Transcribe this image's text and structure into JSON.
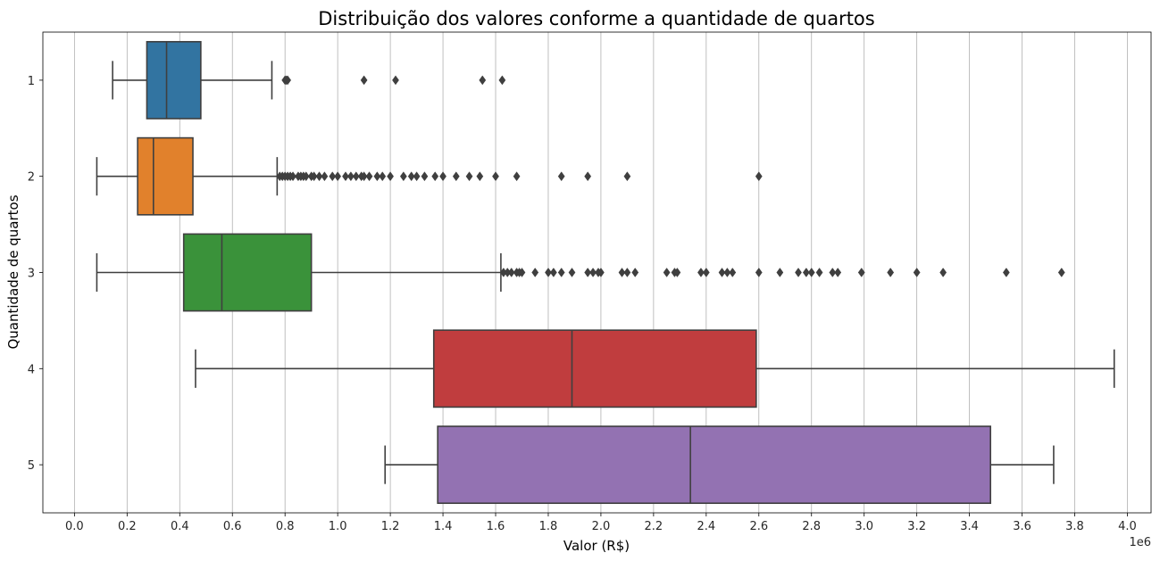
{
  "chart_data": {
    "type": "boxplot",
    "title": "Distribuição dos valores conforme a quantidade de quartos",
    "xlabel": "Valor (R$)",
    "ylabel": "Quantidade de quartos",
    "x_offset_label": "1e6",
    "x_scale": 1000000,
    "xlim": [
      -0.12,
      4.09
    ],
    "x_ticks": [
      0.0,
      0.2,
      0.4,
      0.6,
      0.8,
      1.0,
      1.2,
      1.4,
      1.6,
      1.8,
      2.0,
      2.2,
      2.4,
      2.6,
      2.8,
      3.0,
      3.2,
      3.4,
      3.6,
      3.8,
      4.0
    ],
    "x_tick_labels": [
      "0.0",
      "0.2",
      "0.4",
      "0.6",
      "0.8",
      "1.0",
      "1.2",
      "1.4",
      "1.6",
      "1.8",
      "2.0",
      "2.2",
      "2.4",
      "2.6",
      "2.8",
      "3.0",
      "3.2",
      "3.4",
      "3.6",
      "3.8",
      "4.0"
    ],
    "grid": "vertical",
    "categories": [
      "1",
      "2",
      "3",
      "4",
      "5"
    ],
    "series": [
      {
        "category": "1",
        "color": "#3274a1",
        "whisker_low": 0.145,
        "q1": 0.275,
        "median": 0.35,
        "q3": 0.48,
        "whisker_high": 0.75,
        "outliers": [
          0.8,
          0.805,
          0.81,
          1.1,
          1.22,
          1.55,
          1.625
        ]
      },
      {
        "category": "2",
        "color": "#e1812c",
        "whisker_low": 0.085,
        "q1": 0.24,
        "median": 0.3,
        "q3": 0.45,
        "whisker_high": 0.77,
        "outliers": [
          0.78,
          0.79,
          0.8,
          0.81,
          0.82,
          0.83,
          0.85,
          0.86,
          0.87,
          0.88,
          0.9,
          0.91,
          0.93,
          0.95,
          0.98,
          1.0,
          1.03,
          1.05,
          1.07,
          1.09,
          1.1,
          1.12,
          1.15,
          1.17,
          1.2,
          1.25,
          1.28,
          1.3,
          1.33,
          1.37,
          1.4,
          1.45,
          1.5,
          1.54,
          1.6,
          1.68,
          1.85,
          1.95,
          2.1,
          2.6
        ]
      },
      {
        "category": "3",
        "color": "#3a923a",
        "whisker_low": 0.085,
        "q1": 0.415,
        "median": 0.56,
        "q3": 0.9,
        "whisker_high": 1.62,
        "outliers": [
          1.63,
          1.645,
          1.66,
          1.68,
          1.69,
          1.7,
          1.75,
          1.8,
          1.82,
          1.85,
          1.89,
          1.95,
          1.97,
          1.99,
          2.0,
          2.08,
          2.1,
          2.13,
          2.25,
          2.28,
          2.29,
          2.38,
          2.4,
          2.46,
          2.48,
          2.5,
          2.6,
          2.68,
          2.75,
          2.78,
          2.8,
          2.83,
          2.88,
          2.9,
          2.99,
          3.1,
          3.2,
          3.3,
          3.54,
          3.75
        ]
      },
      {
        "category": "4",
        "color": "#c03d3e",
        "whisker_low": 0.46,
        "q1": 1.365,
        "median": 1.89,
        "q3": 2.59,
        "whisker_high": 3.95,
        "outliers": []
      },
      {
        "category": "5",
        "color": "#9372b2",
        "whisker_low": 1.18,
        "q1": 1.38,
        "median": 2.34,
        "q3": 3.48,
        "whisker_high": 3.72,
        "outliers": []
      }
    ]
  }
}
